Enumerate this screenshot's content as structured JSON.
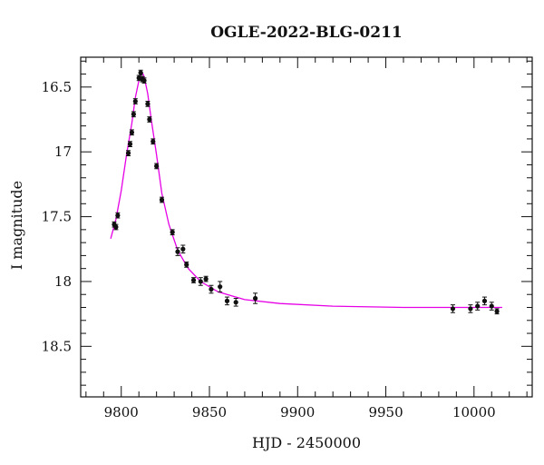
{
  "chart_data": {
    "type": "scatter",
    "title": "OGLE-2022-BLG-0211",
    "xlabel": "HJD - 2450000",
    "ylabel": "I magnitude",
    "xlim": [
      9777,
      10033
    ],
    "ylim": [
      18.89,
      16.27
    ],
    "y_inverted": true,
    "x_ticks": [
      9800,
      9850,
      9900,
      9950,
      10000
    ],
    "x_tick_labels": [
      "9800",
      "9850",
      "9900",
      "9950",
      "10000"
    ],
    "x_minor_step": 10,
    "y_ticks": [
      16.5,
      17,
      17.5,
      18,
      18.5
    ],
    "y_tick_labels": [
      "16.5",
      "17",
      "17.5",
      "18",
      "18.5"
    ],
    "y_minor_step": 0.1,
    "grid": false,
    "colors": {
      "points": "#111111",
      "model": "#e600e6",
      "axes": "#111111"
    },
    "series": [
      {
        "kind": "points",
        "x": [
          9796,
          9797,
          9798,
          9804,
          9805,
          9806,
          9807,
          9808,
          9810,
          9811,
          9812,
          9813,
          9815,
          9816,
          9818,
          9820,
          9823,
          9829,
          9832,
          9835,
          9837,
          9841,
          9845,
          9848,
          9851,
          9856,
          9860,
          9865,
          9876,
          9988,
          9998,
          10002,
          10006,
          10010,
          10013
        ],
        "y": [
          17.56,
          17.58,
          17.49,
          17.01,
          16.94,
          16.85,
          16.71,
          16.61,
          16.43,
          16.39,
          16.44,
          16.45,
          16.63,
          16.75,
          16.92,
          17.11,
          17.37,
          17.62,
          17.77,
          17.75,
          17.87,
          17.99,
          18.0,
          17.98,
          18.06,
          18.04,
          18.15,
          18.16,
          18.13,
          18.21,
          18.21,
          18.19,
          18.15,
          18.19,
          18.23
        ],
        "yerr": [
          0.02,
          0.02,
          0.02,
          0.02,
          0.02,
          0.02,
          0.02,
          0.02,
          0.02,
          0.02,
          0.02,
          0.02,
          0.02,
          0.02,
          0.02,
          0.02,
          0.02,
          0.02,
          0.03,
          0.03,
          0.02,
          0.02,
          0.03,
          0.02,
          0.03,
          0.04,
          0.03,
          0.03,
          0.04,
          0.03,
          0.03,
          0.03,
          0.03,
          0.03,
          0.02
        ]
      },
      {
        "kind": "model",
        "x": [
          9794,
          9797,
          9800,
          9803,
          9806,
          9808,
          9810,
          9811,
          9812,
          9813,
          9815,
          9817,
          9820,
          9823,
          9827,
          9832,
          9838,
          9845,
          9855,
          9870,
          9890,
          9920,
          9960,
          10000,
          10016
        ],
        "y": [
          17.67,
          17.52,
          17.3,
          17.02,
          16.78,
          16.58,
          16.45,
          16.41,
          16.39,
          16.42,
          16.55,
          16.75,
          17.02,
          17.32,
          17.56,
          17.76,
          17.9,
          18.0,
          18.08,
          18.14,
          18.17,
          18.19,
          18.2,
          18.2,
          18.2
        ]
      }
    ]
  }
}
